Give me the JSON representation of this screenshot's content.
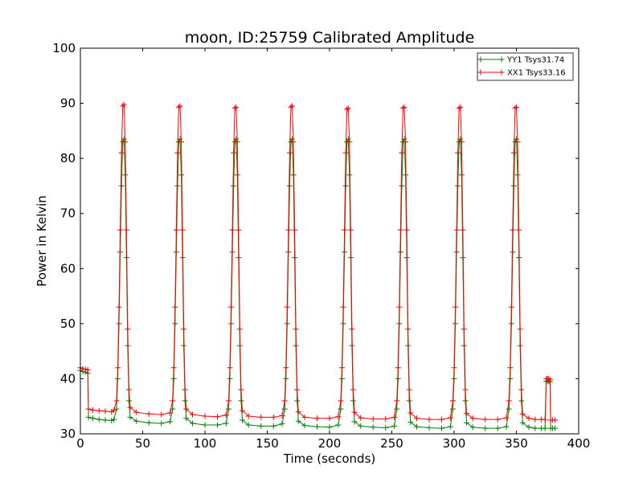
{
  "chart_data": {
    "type": "line",
    "title": "moon, ID:25759 Calibrated Amplitude",
    "xlabel": "Time (seconds)",
    "ylabel": "Power in Kelvin",
    "xlim": [
      0,
      400
    ],
    "ylim": [
      30,
      100
    ],
    "xticks": [
      0,
      50,
      100,
      150,
      200,
      250,
      300,
      350,
      400
    ],
    "yticks": [
      30,
      40,
      50,
      60,
      70,
      80,
      90,
      100
    ],
    "grid": false,
    "legend_position": "top-right",
    "marker": "+",
    "peak_centers_seconds": [
      34,
      79,
      124,
      169,
      214,
      259,
      304,
      349
    ],
    "series": [
      {
        "name": "YY1 Tsys31.74",
        "color": "#008000",
        "points": [
          [
            0,
            41.5
          ],
          [
            2,
            41.3
          ],
          [
            4,
            41.2
          ],
          [
            6,
            41.0
          ],
          [
            6.5,
            33.0
          ],
          [
            10,
            32.8
          ],
          [
            15,
            32.6
          ],
          [
            20,
            32.5
          ],
          [
            25,
            32.4
          ],
          [
            27,
            32.6
          ],
          [
            29,
            34.5
          ],
          [
            30,
            40.0
          ],
          [
            31,
            50.0
          ],
          [
            32,
            63.0
          ],
          [
            33,
            75.0
          ],
          [
            34,
            83.0
          ],
          [
            35,
            83.5
          ],
          [
            36,
            77.0
          ],
          [
            37,
            62.0
          ],
          [
            38,
            46.0
          ],
          [
            39,
            36.0
          ],
          [
            40,
            33.0
          ],
          [
            45,
            32.3
          ],
          [
            55,
            32.0
          ],
          [
            65,
            31.9
          ],
          [
            72,
            32.2
          ],
          [
            74,
            34.5
          ],
          [
            75,
            40.0
          ],
          [
            76,
            50.0
          ],
          [
            77,
            63.0
          ],
          [
            78,
            75.0
          ],
          [
            79,
            83.0
          ],
          [
            80,
            83.5
          ],
          [
            81,
            77.0
          ],
          [
            82,
            62.0
          ],
          [
            83,
            46.0
          ],
          [
            84,
            36.0
          ],
          [
            85,
            32.8
          ],
          [
            90,
            31.9
          ],
          [
            100,
            31.6
          ],
          [
            110,
            31.6
          ],
          [
            117,
            31.9
          ],
          [
            119,
            34.5
          ],
          [
            120,
            40.0
          ],
          [
            121,
            50.0
          ],
          [
            122,
            63.0
          ],
          [
            123,
            75.0
          ],
          [
            124,
            83.0
          ],
          [
            125,
            83.5
          ],
          [
            126,
            77.0
          ],
          [
            127,
            62.0
          ],
          [
            128,
            46.0
          ],
          [
            129,
            36.0
          ],
          [
            130,
            32.5
          ],
          [
            135,
            31.6
          ],
          [
            145,
            31.4
          ],
          [
            155,
            31.4
          ],
          [
            162,
            31.8
          ],
          [
            164,
            34.5
          ],
          [
            165,
            40.0
          ],
          [
            166,
            50.0
          ],
          [
            167,
            63.0
          ],
          [
            168,
            75.0
          ],
          [
            169,
            83.0
          ],
          [
            170,
            83.5
          ],
          [
            171,
            77.0
          ],
          [
            172,
            62.0
          ],
          [
            173,
            46.0
          ],
          [
            174,
            36.0
          ],
          [
            175,
            32.3
          ],
          [
            180,
            31.5
          ],
          [
            190,
            31.3
          ],
          [
            200,
            31.2
          ],
          [
            207,
            31.6
          ],
          [
            209,
            34.5
          ],
          [
            210,
            40.0
          ],
          [
            211,
            50.0
          ],
          [
            212,
            63.0
          ],
          [
            213,
            75.0
          ],
          [
            214,
            83.0
          ],
          [
            215,
            83.5
          ],
          [
            216,
            77.0
          ],
          [
            217,
            62.0
          ],
          [
            218,
            46.0
          ],
          [
            219,
            36.0
          ],
          [
            220,
            32.2
          ],
          [
            225,
            31.4
          ],
          [
            235,
            31.2
          ],
          [
            245,
            31.1
          ],
          [
            252,
            31.4
          ],
          [
            254,
            34.5
          ],
          [
            255,
            40.0
          ],
          [
            256,
            50.0
          ],
          [
            257,
            63.0
          ],
          [
            258,
            75.0
          ],
          [
            259,
            83.0
          ],
          [
            260,
            83.5
          ],
          [
            261,
            77.0
          ],
          [
            262,
            62.0
          ],
          [
            263,
            46.0
          ],
          [
            264,
            36.0
          ],
          [
            265,
            32.1
          ],
          [
            270,
            31.3
          ],
          [
            280,
            31.1
          ],
          [
            290,
            31.0
          ],
          [
            297,
            31.3
          ],
          [
            299,
            34.5
          ],
          [
            300,
            40.0
          ],
          [
            301,
            50.0
          ],
          [
            302,
            63.0
          ],
          [
            303,
            75.0
          ],
          [
            304,
            83.0
          ],
          [
            305,
            83.5
          ],
          [
            306,
            77.0
          ],
          [
            307,
            62.0
          ],
          [
            308,
            46.0
          ],
          [
            309,
            36.0
          ],
          [
            310,
            32.0
          ],
          [
            315,
            31.2
          ],
          [
            325,
            31.0
          ],
          [
            335,
            31.0
          ],
          [
            342,
            31.3
          ],
          [
            344,
            34.5
          ],
          [
            345,
            40.0
          ],
          [
            346,
            50.0
          ],
          [
            347,
            63.0
          ],
          [
            348,
            75.0
          ],
          [
            349,
            83.0
          ],
          [
            350,
            83.5
          ],
          [
            351,
            77.0
          ],
          [
            352,
            62.0
          ],
          [
            353,
            46.0
          ],
          [
            354,
            36.0
          ],
          [
            355,
            32.0
          ],
          [
            360,
            31.2
          ],
          [
            365,
            31.0
          ],
          [
            370,
            31.0
          ],
          [
            373,
            31.0
          ],
          [
            374,
            39.5
          ],
          [
            375,
            39.6
          ],
          [
            376,
            39.5
          ],
          [
            377,
            39.4
          ],
          [
            377.5,
            31.0
          ],
          [
            379,
            31.0
          ],
          [
            381,
            31.0
          ]
        ]
      },
      {
        "name": "XX1 Tsys33.16",
        "color": "#ff0000",
        "points": [
          [
            0,
            42.0
          ],
          [
            2,
            41.8
          ],
          [
            4,
            41.7
          ],
          [
            6,
            41.6
          ],
          [
            6.5,
            34.5
          ],
          [
            10,
            34.3
          ],
          [
            15,
            34.2
          ],
          [
            20,
            34.1
          ],
          [
            25,
            34.0
          ],
          [
            27,
            34.3
          ],
          [
            29,
            36.0
          ],
          [
            30,
            42.0
          ],
          [
            31,
            53.0
          ],
          [
            32,
            67.0
          ],
          [
            33,
            81.0
          ],
          [
            34,
            89.5
          ],
          [
            35,
            89.8
          ],
          [
            36,
            83.0
          ],
          [
            37,
            67.0
          ],
          [
            38,
            49.0
          ],
          [
            39,
            38.0
          ],
          [
            40,
            34.8
          ],
          [
            45,
            33.9
          ],
          [
            55,
            33.6
          ],
          [
            65,
            33.5
          ],
          [
            72,
            33.8
          ],
          [
            74,
            36.0
          ],
          [
            75,
            42.0
          ],
          [
            76,
            53.0
          ],
          [
            77,
            67.0
          ],
          [
            78,
            81.0
          ],
          [
            79,
            89.3
          ],
          [
            80,
            89.5
          ],
          [
            81,
            83.0
          ],
          [
            82,
            67.0
          ],
          [
            83,
            49.0
          ],
          [
            84,
            38.0
          ],
          [
            85,
            34.5
          ],
          [
            90,
            33.5
          ],
          [
            100,
            33.2
          ],
          [
            110,
            33.1
          ],
          [
            117,
            33.4
          ],
          [
            119,
            36.0
          ],
          [
            120,
            42.0
          ],
          [
            121,
            53.0
          ],
          [
            122,
            67.0
          ],
          [
            123,
            81.0
          ],
          [
            124,
            89.1
          ],
          [
            125,
            89.3
          ],
          [
            126,
            83.0
          ],
          [
            127,
            67.0
          ],
          [
            128,
            49.0
          ],
          [
            129,
            38.0
          ],
          [
            130,
            34.2
          ],
          [
            135,
            33.2
          ],
          [
            145,
            33.0
          ],
          [
            155,
            33.0
          ],
          [
            162,
            33.3
          ],
          [
            164,
            36.0
          ],
          [
            165,
            42.0
          ],
          [
            166,
            53.0
          ],
          [
            167,
            67.0
          ],
          [
            168,
            81.0
          ],
          [
            169,
            89.3
          ],
          [
            170,
            89.5
          ],
          [
            171,
            83.0
          ],
          [
            172,
            67.0
          ],
          [
            173,
            49.0
          ],
          [
            174,
            38.0
          ],
          [
            175,
            34.0
          ],
          [
            180,
            33.0
          ],
          [
            190,
            32.8
          ],
          [
            200,
            32.8
          ],
          [
            207,
            33.1
          ],
          [
            209,
            36.0
          ],
          [
            210,
            42.0
          ],
          [
            211,
            53.0
          ],
          [
            212,
            67.0
          ],
          [
            213,
            81.0
          ],
          [
            214,
            88.9
          ],
          [
            215,
            89.1
          ],
          [
            216,
            83.0
          ],
          [
            217,
            67.0
          ],
          [
            218,
            49.0
          ],
          [
            219,
            38.0
          ],
          [
            220,
            33.9
          ],
          [
            225,
            32.9
          ],
          [
            235,
            32.7
          ],
          [
            245,
            32.7
          ],
          [
            252,
            33.0
          ],
          [
            254,
            36.0
          ],
          [
            255,
            42.0
          ],
          [
            256,
            53.0
          ],
          [
            257,
            67.0
          ],
          [
            258,
            81.0
          ],
          [
            259,
            89.1
          ],
          [
            260,
            89.3
          ],
          [
            261,
            83.0
          ],
          [
            262,
            67.0
          ],
          [
            263,
            49.0
          ],
          [
            264,
            38.0
          ],
          [
            265,
            33.8
          ],
          [
            270,
            32.8
          ],
          [
            280,
            32.6
          ],
          [
            290,
            32.6
          ],
          [
            297,
            32.9
          ],
          [
            299,
            36.0
          ],
          [
            300,
            42.0
          ],
          [
            301,
            53.0
          ],
          [
            302,
            67.0
          ],
          [
            303,
            81.0
          ],
          [
            304,
            89.1
          ],
          [
            305,
            89.3
          ],
          [
            306,
            83.0
          ],
          [
            307,
            67.0
          ],
          [
            308,
            49.0
          ],
          [
            309,
            38.0
          ],
          [
            310,
            33.7
          ],
          [
            315,
            32.8
          ],
          [
            325,
            32.6
          ],
          [
            335,
            32.6
          ],
          [
            342,
            32.9
          ],
          [
            344,
            36.0
          ],
          [
            345,
            42.0
          ],
          [
            346,
            53.0
          ],
          [
            347,
            67.0
          ],
          [
            348,
            81.0
          ],
          [
            349,
            89.1
          ],
          [
            350,
            89.3
          ],
          [
            351,
            83.0
          ],
          [
            352,
            67.0
          ],
          [
            353,
            49.0
          ],
          [
            354,
            38.0
          ],
          [
            355,
            33.6
          ],
          [
            360,
            32.8
          ],
          [
            365,
            32.6
          ],
          [
            370,
            32.6
          ],
          [
            373,
            32.6
          ],
          [
            374,
            40.0
          ],
          [
            375,
            40.0
          ],
          [
            376,
            40.0
          ],
          [
            377,
            39.8
          ],
          [
            377.5,
            32.5
          ],
          [
            379,
            32.5
          ],
          [
            381,
            32.5
          ]
        ]
      }
    ]
  }
}
